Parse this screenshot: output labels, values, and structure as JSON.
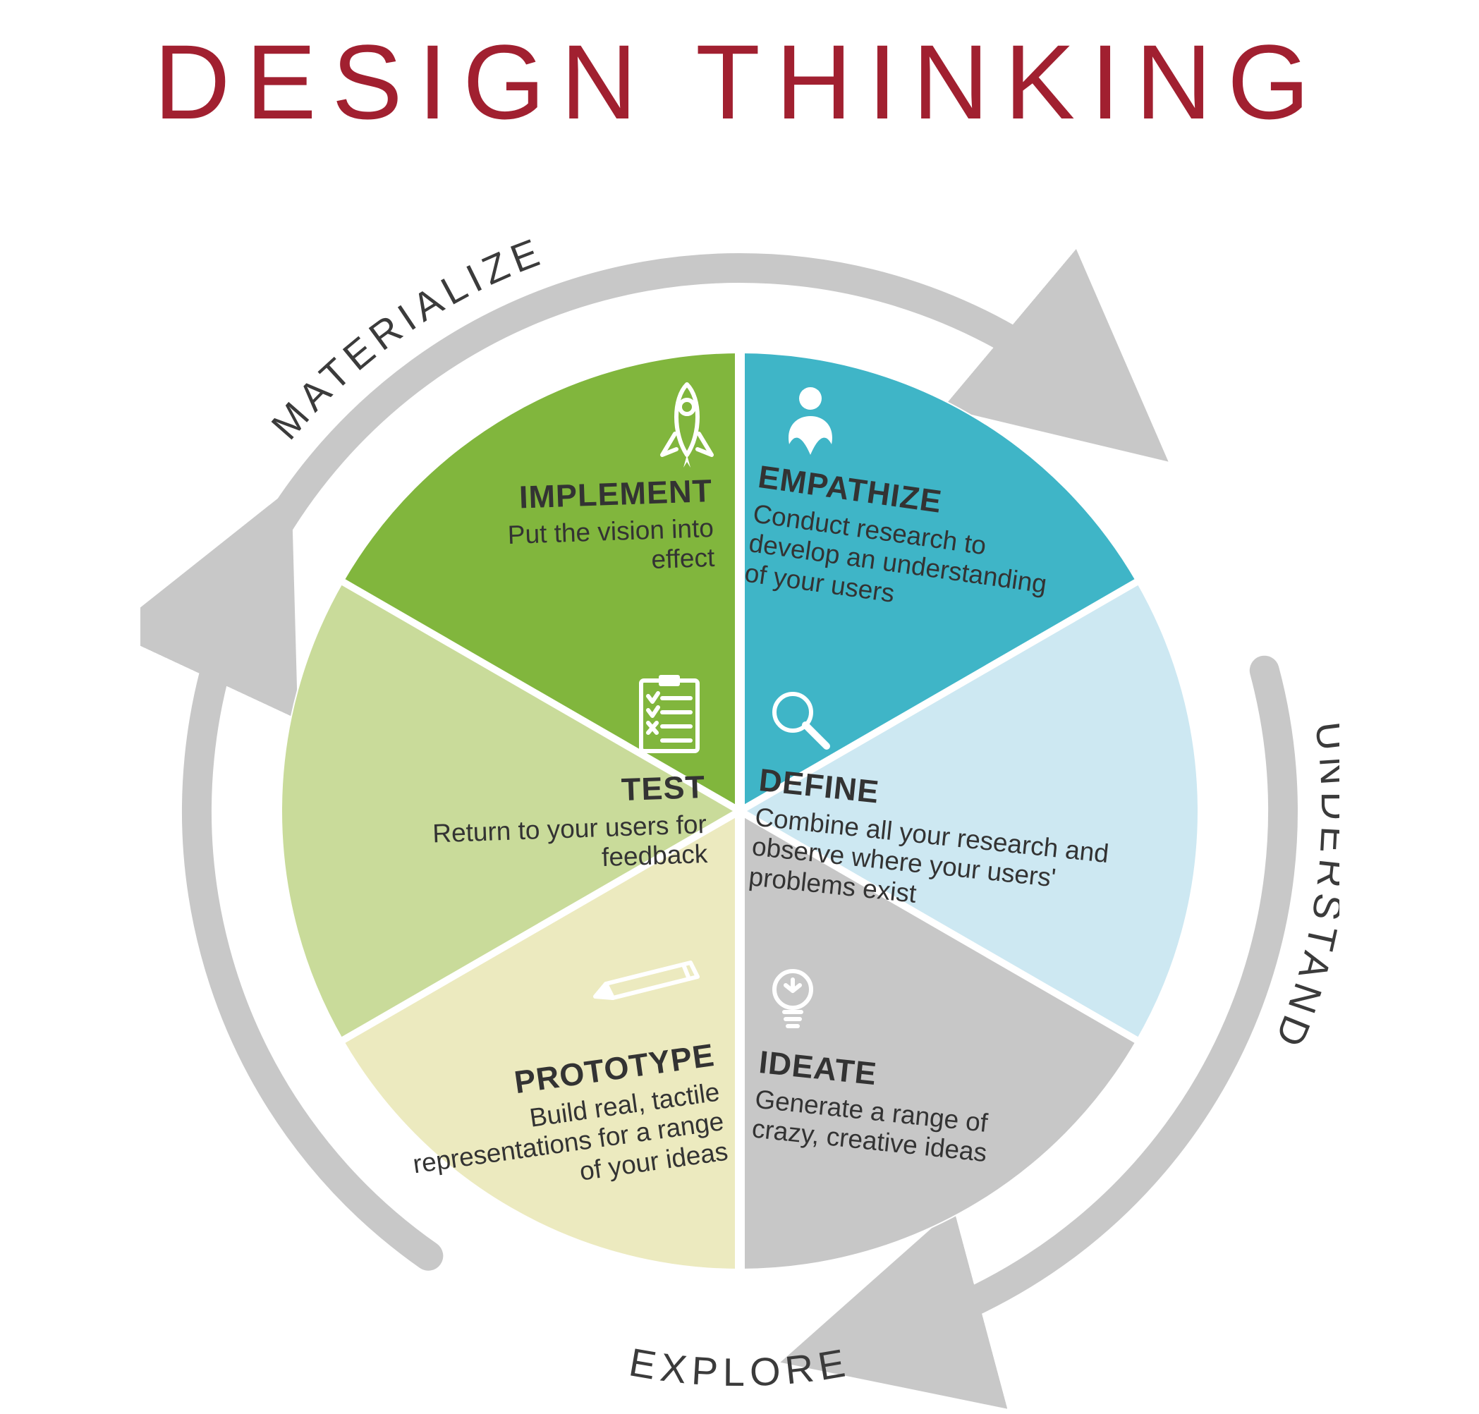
{
  "title": "DESIGN THINKING",
  "title_color": "#a12030",
  "title_fontsize": 150,
  "title_letter_spacing": 22,
  "diagram": {
    "type": "infographic-circular-process",
    "outer_arrow_color": "#c8c8c8",
    "outer_arrow_width": 42,
    "circle_radius": 650,
    "text_color": "#333333",
    "segment_title_fontsize": 45,
    "segment_body_fontsize": 37,
    "phase_label_fontsize": 56,
    "phase_label_color": "#3b3b3b",
    "phases": [
      {
        "label": "UNDERSTAND",
        "position": "right"
      },
      {
        "label": "EXPLORE",
        "position": "bottom"
      },
      {
        "label": "MATERIALIZE",
        "position": "top-left"
      }
    ],
    "segments": [
      {
        "key": "empathize",
        "title": "EMPATHIZE",
        "body": "Conduct research to develop an understanding of your users",
        "fill": "#3fb5c7",
        "icon": "person-heart",
        "icon_color": "#ffffff",
        "angle_start": -90,
        "angle_end": -30
      },
      {
        "key": "define",
        "title": "DEFINE",
        "body": "Combine all your research and observe where your users' problems exist",
        "fill": "#cde8f2",
        "icon": "magnifier",
        "icon_color": "#ffffff",
        "angle_start": -30,
        "angle_end": 30
      },
      {
        "key": "ideate",
        "title": "IDEATE",
        "body": "Generate a range of crazy, creative ideas",
        "fill": "#c7c7c7",
        "icon": "lightbulb",
        "icon_color": "#ffffff",
        "angle_start": 30,
        "angle_end": 90
      },
      {
        "key": "prototype",
        "title": "PROTOTYPE",
        "body": "Build real, tactile representations for a range of your ideas",
        "fill": "#eceabf",
        "icon": "pencil",
        "icon_color": "#ffffff",
        "angle_start": 90,
        "angle_end": 150
      },
      {
        "key": "test",
        "title": "TEST",
        "body": "Return to your users for feedback",
        "fill": "#c9db9a",
        "icon": "checklist",
        "icon_color": "#ffffff",
        "angle_start": 150,
        "angle_end": 210
      },
      {
        "key": "implement",
        "title": "IMPLEMENT",
        "body": "Put the vision into effect",
        "fill": "#81b63d",
        "icon": "rocket",
        "icon_color": "#ffffff",
        "angle_start": 210,
        "angle_end": 270
      }
    ]
  }
}
